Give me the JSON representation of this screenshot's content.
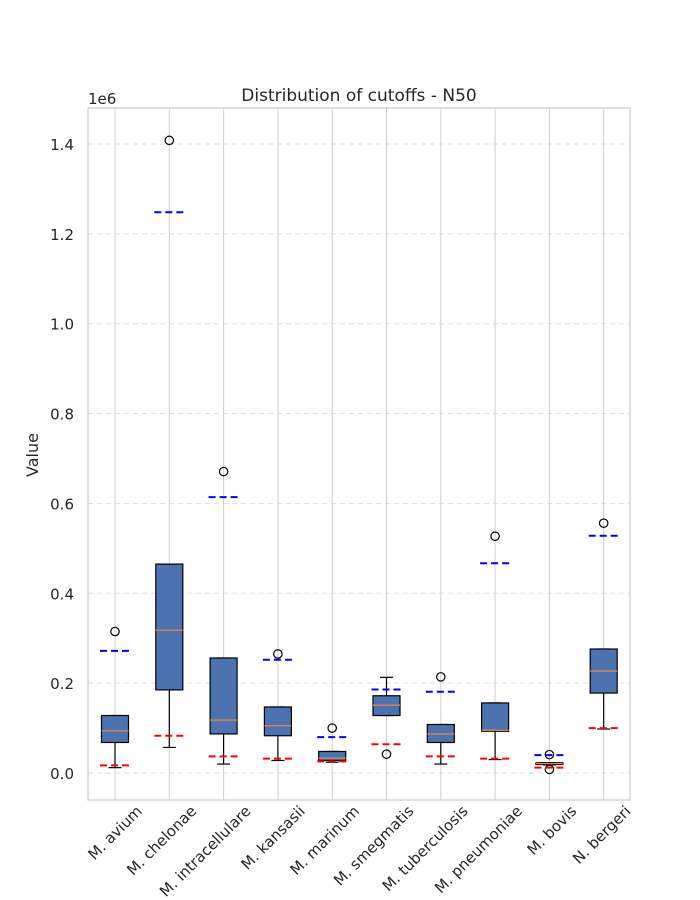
{
  "chart_data": {
    "type": "box",
    "title": "Distribution of cutoffs - N50",
    "ylabel": "Value",
    "xlabel": "",
    "y_multiplier_label": "1e6",
    "ylim": [
      -0.06,
      1.48
    ],
    "yticks": [
      0.0,
      0.2,
      0.4,
      0.6,
      0.8,
      1.0,
      1.2,
      1.4
    ],
    "ytick_labels": [
      "0.0",
      "0.2",
      "0.4",
      "0.6",
      "0.8",
      "1.0",
      "1.2",
      "1.4"
    ],
    "grid": true,
    "categories": [
      "M. avium",
      "M. chelonae",
      "M. intracellulare",
      "M. kansasii",
      "M. marinum",
      "M. smegmatis",
      "M. tuberculosis",
      "M. pneumoniae",
      "M. bovis",
      "N. bergeri"
    ],
    "boxes": [
      {
        "whisker_low": 0.012,
        "q1": 0.068,
        "median": 0.094,
        "q3": 0.128,
        "whisker_high": 0.128,
        "outliers": [
          0.315
        ],
        "upper_cutoff": 0.272,
        "lower_cutoff": 0.017
      },
      {
        "whisker_low": 0.057,
        "q1": 0.185,
        "median": 0.318,
        "q3": 0.465,
        "whisker_high": 0.465,
        "outliers": [
          1.408
        ],
        "upper_cutoff": 1.248,
        "lower_cutoff": 0.083
      },
      {
        "whisker_low": 0.02,
        "q1": 0.087,
        "median": 0.118,
        "q3": 0.256,
        "whisker_high": 0.256,
        "outliers": [
          0.671
        ],
        "upper_cutoff": 0.614,
        "lower_cutoff": 0.037
      },
      {
        "whisker_low": 0.028,
        "q1": 0.083,
        "median": 0.105,
        "q3": 0.147,
        "whisker_high": 0.147,
        "outliers": [
          0.265
        ],
        "upper_cutoff": 0.252,
        "lower_cutoff": 0.032
      },
      {
        "whisker_low": 0.024,
        "q1": 0.028,
        "median": 0.033,
        "q3": 0.048,
        "whisker_high": 0.048,
        "outliers": [
          0.1
        ],
        "upper_cutoff": 0.08,
        "lower_cutoff": 0.026
      },
      {
        "whisker_low": 0.128,
        "q1": 0.128,
        "median": 0.151,
        "q3": 0.172,
        "whisker_high": 0.213,
        "outliers": [
          0.042
        ],
        "upper_cutoff": 0.186,
        "lower_cutoff": 0.064
      },
      {
        "whisker_low": 0.02,
        "q1": 0.068,
        "median": 0.087,
        "q3": 0.108,
        "whisker_high": 0.108,
        "outliers": [
          0.214
        ],
        "upper_cutoff": 0.181,
        "lower_cutoff": 0.037
      },
      {
        "whisker_low": 0.03,
        "q1": 0.093,
        "median": 0.095,
        "q3": 0.156,
        "whisker_high": 0.156,
        "outliers": [
          0.527
        ],
        "upper_cutoff": 0.467,
        "lower_cutoff": 0.032
      },
      {
        "whisker_low": 0.018,
        "q1": 0.019,
        "median": 0.021,
        "q3": 0.023,
        "whisker_high": 0.023,
        "outliers": [
          0.041,
          0.008
        ],
        "upper_cutoff": 0.04,
        "lower_cutoff": 0.012
      },
      {
        "whisker_low": 0.098,
        "q1": 0.178,
        "median": 0.227,
        "q3": 0.276,
        "whisker_high": 0.276,
        "outliers": [
          0.556
        ],
        "upper_cutoff": 0.528,
        "lower_cutoff": 0.1
      }
    ],
    "colors": {
      "box_fill": "#4c72b0",
      "median": "#dd8452",
      "upper_cutoff": "#0000ff",
      "lower_cutoff": "#ff0000",
      "grid": "#dddddd",
      "vgrid": "#d0d0d0",
      "axes_edge": "#cccccc"
    }
  }
}
